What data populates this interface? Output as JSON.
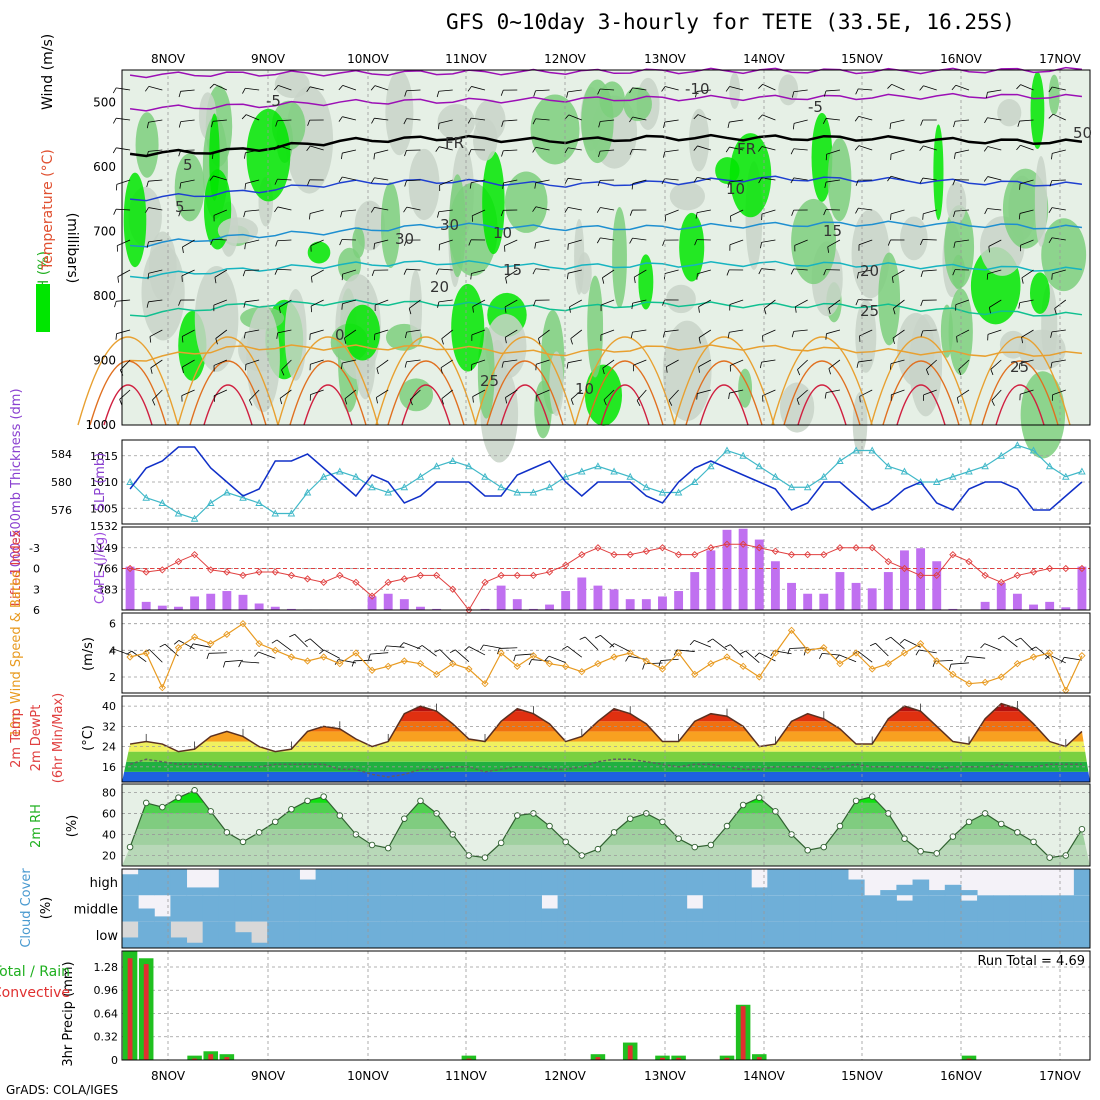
{
  "title": "GFS 0~10day 3-hourly for TETE (33.5E, 16.25S)",
  "footer": "GrADS: COLA/IGES",
  "colors": {
    "rh_dark": "#00e600",
    "rh_mid": "#7dcf7d",
    "rh_light": "#c8d4c8",
    "rh_pale": "#e6f0e6",
    "tlow": "#9b0fb5",
    "tfr": "#000000",
    "t5": "#1e40d0",
    "t10": "#1e8fd0",
    "t15": "#16b4c0",
    "t20": "#10c090",
    "t25": "#e8a030",
    "t30": "#e07020",
    "t35": "#d02040",
    "slp": "#40b8c8",
    "thick": "#1030c8",
    "li": "#e04040",
    "cape": "#c070f0",
    "wind": "#e89a20",
    "barb": "#000000",
    "cloud": "#6fafd8",
    "cloud_gap": "#f4f2f8",
    "cloud_low_gap": "#d8d8d8",
    "precip_total": "#20c020",
    "precip_conv": "#e03030"
  },
  "chart_data": [
    {
      "panel": "meteogram-upper-air",
      "type": "heatmap",
      "x_ticks": [
        "8NOV",
        "9NOV",
        "10NOV",
        "11NOV",
        "12NOV",
        "13NOV",
        "14NOV",
        "15NOV",
        "16NOV",
        "17NOV"
      ],
      "ylabel": "(millibars)",
      "y_ticks": [
        "500",
        "600",
        "700",
        "800",
        "900",
        "1000"
      ],
      "ylim": [
        450,
        1000
      ],
      "label_rh": "RH (%)",
      "label_temp": "Temperature (°C)",
      "label_wind": "Wind (m/s)",
      "contour_labels": [
        "-5",
        "-10",
        "-5",
        "FR",
        "FR",
        "5",
        "5",
        "10",
        "10",
        "15",
        "15",
        "20",
        "20",
        "25",
        "0",
        "25",
        "10",
        "25",
        "30",
        "30",
        "50"
      ],
      "isotherms": [
        {
          "name": "-10",
          "p": [
            458,
            456,
            455,
            454,
            453,
            452,
            451,
            452,
            451,
            450
          ]
        },
        {
          "name": "-5",
          "p": [
            510,
            506,
            500,
            498,
            496,
            494,
            493,
            492,
            490,
            492
          ]
        },
        {
          "name": "FR",
          "p": [
            580,
            575,
            560,
            555,
            560,
            555,
            555,
            556,
            560,
            562
          ]
        },
        {
          "name": "5",
          "p": [
            650,
            640,
            625,
            622,
            628,
            625,
            618,
            620,
            624,
            628
          ]
        },
        {
          "name": "10",
          "p": [
            722,
            708,
            700,
            690,
            695,
            694,
            690,
            688,
            690,
            695
          ]
        },
        {
          "name": "15",
          "p": [
            770,
            760,
            752,
            748,
            755,
            752,
            750,
            752,
            756,
            760
          ]
        },
        {
          "name": "20",
          "p": [
            830,
            815,
            810,
            812,
            820,
            812,
            815,
            815,
            825,
            830
          ]
        },
        {
          "name": "25",
          "p": [
            900,
            880,
            880,
            880,
            890,
            880,
            880,
            885,
            890,
            890
          ]
        }
      ]
    },
    {
      "panel": "slp-thickness",
      "type": "line",
      "label_left": "1000-500mb Thickness (dm)",
      "label_right": "SLP (mb)",
      "y_ticks_left": [
        "584",
        "580",
        "576"
      ],
      "y_ticks_right": [
        "1015",
        "1010",
        "1005"
      ],
      "ylim_left": [
        574,
        586
      ],
      "ylim_right": [
        1002,
        1018
      ],
      "series": [
        {
          "name": "SLP (mb)",
          "values": [
            1010,
            1007,
            1006,
            1004,
            1003,
            1006,
            1008,
            1007,
            1006,
            1004,
            1004,
            1008,
            1011,
            1012,
            1011,
            1009,
            1008,
            1009,
            1011,
            1013,
            1014,
            1013,
            1011,
            1009,
            1008,
            1008,
            1009,
            1011,
            1012,
            1013,
            1012,
            1011,
            1009,
            1008,
            1008,
            1010,
            1013,
            1016,
            1015,
            1013,
            1011,
            1009,
            1009,
            1011,
            1014,
            1016,
            1016,
            1013,
            1012,
            1010,
            1010,
            1011,
            1012,
            1013,
            1015,
            1017,
            1016,
            1013,
            1011,
            1012
          ]
        },
        {
          "name": "1000-500mb Thickness (dm)",
          "values": [
            579,
            582,
            583,
            585,
            585,
            582,
            580,
            578,
            579,
            583,
            583,
            584,
            582,
            580,
            578,
            581,
            580,
            577,
            578,
            580,
            580,
            580,
            578,
            578,
            581,
            582,
            583,
            580,
            578,
            580,
            580,
            580,
            578,
            577,
            580,
            582,
            583,
            582,
            581,
            580,
            579,
            576,
            577,
            580,
            580,
            578,
            576,
            577,
            579,
            580,
            577,
            576,
            579,
            580,
            580,
            579,
            576,
            576,
            578,
            580
          ]
        }
      ]
    },
    {
      "panel": "li-cape",
      "type": "bar",
      "label_left": "Lifted Index",
      "label_right": "CAPE (J/kg)",
      "y_ticks_left": [
        "-3",
        "0",
        "3",
        "6"
      ],
      "y_ticks_right": [
        "1149",
        "766",
        "383"
      ],
      "ylim_right": [
        0,
        1532
      ],
      "ylim_left": [
        6,
        -6
      ],
      "series": [
        {
          "name": "CAPE (J/kg)",
          "values": [
            800,
            150,
            80,
            60,
            250,
            300,
            350,
            280,
            120,
            60,
            20,
            10,
            10,
            0,
            10,
            250,
            300,
            200,
            60,
            20,
            0,
            0,
            20,
            450,
            200,
            20,
            100,
            350,
            600,
            450,
            380,
            200,
            200,
            250,
            350,
            700,
            1100,
            1480,
            1500,
            1300,
            900,
            500,
            300,
            300,
            700,
            500,
            400,
            700,
            1100,
            1140,
            900,
            20,
            0,
            150,
            500,
            300,
            100,
            150,
            50,
            800
          ]
        },
        {
          "name": "Lifted Index",
          "values": [
            0,
            0.5,
            0.2,
            -1,
            -2,
            0.2,
            0.5,
            1,
            0.5,
            0.5,
            1,
            1.5,
            2,
            1,
            2,
            4,
            2,
            1.5,
            1,
            1,
            3,
            6,
            2,
            1,
            1,
            1,
            0.5,
            -0.5,
            -2,
            -3,
            -2,
            -2,
            -2.5,
            -3,
            -2,
            -2,
            -3,
            -3.5,
            -3.5,
            -3,
            -2.5,
            -2,
            -2,
            -2,
            -3,
            -3,
            -3,
            -1,
            0,
            1,
            1,
            -2,
            -1,
            1,
            2,
            1,
            0.5,
            0,
            0,
            0
          ]
        }
      ]
    },
    {
      "panel": "wind-10m",
      "type": "line",
      "label": "10m Wind Speed & Barbs",
      "label_units": "(m/s)",
      "y_ticks": [
        "6",
        "4",
        "2"
      ],
      "ylim": [
        0.8,
        6.8
      ],
      "series": [
        {
          "name": "10m Wind Speed",
          "values": [
            3.5,
            3.8,
            1.2,
            4.2,
            5.0,
            4.5,
            5.2,
            6.0,
            4.5,
            4.0,
            3.5,
            3.2,
            3.5,
            3.0,
            3.8,
            2.5,
            2.8,
            3.2,
            3.0,
            2.2,
            3.0,
            2.6,
            1.5,
            3.8,
            2.8,
            3.6,
            3.0,
            2.8,
            2.4,
            3.0,
            3.5,
            3.8,
            3.2,
            2.6,
            3.8,
            2.2,
            3.0,
            3.5,
            2.8,
            2.0,
            3.8,
            5.5,
            4.0,
            4.2,
            3.0,
            3.8,
            2.6,
            3.0,
            3.8,
            4.5,
            3.2,
            2.2,
            1.5,
            1.6,
            2.0,
            3.0,
            3.5,
            3.8,
            1.0,
            3.6
          ]
        }
      ]
    },
    {
      "panel": "temp-dewpt",
      "type": "area",
      "label": "2m Temp",
      "label_2": "2m DewPt",
      "label_3": "(6hr Min/Max)",
      "label_units": "(°C)",
      "y_ticks": [
        "40",
        "32",
        "24",
        "16"
      ],
      "ylim": [
        10,
        44
      ],
      "series": [
        {
          "name": "2m Temp",
          "values": [
            25,
            26,
            25,
            22,
            23,
            28,
            30,
            28,
            24,
            22,
            23,
            30,
            32,
            31,
            27,
            24,
            26,
            37,
            40,
            38,
            33,
            27,
            26,
            34,
            39,
            37,
            33,
            26,
            28,
            34,
            39,
            37,
            33,
            26,
            26,
            34,
            37,
            36,
            32,
            24,
            25,
            34,
            37,
            35,
            31,
            25,
            25,
            35,
            40,
            38,
            32,
            26,
            25,
            35,
            41,
            39,
            33,
            26,
            24,
            30
          ]
        },
        {
          "name": "2m DewPt",
          "values": [
            17,
            19,
            18,
            17,
            17,
            17,
            16,
            16,
            16,
            17,
            17,
            17,
            17,
            15,
            15,
            13,
            12,
            13,
            15,
            15,
            16,
            16,
            14,
            15,
            16,
            16,
            15,
            15,
            16,
            18,
            19,
            19,
            18,
            17,
            16,
            17,
            17,
            16,
            15,
            15,
            16,
            16,
            16,
            15,
            16,
            17,
            16,
            16,
            16,
            16,
            15,
            16,
            16,
            16,
            17,
            16,
            16,
            17,
            17,
            17
          ]
        }
      ]
    },
    {
      "panel": "rh-2m",
      "type": "area",
      "label": "2m RH",
      "label_units": "(%)",
      "y_ticks": [
        "80",
        "60",
        "40",
        "20"
      ],
      "ylim": [
        10,
        88
      ],
      "series": [
        {
          "name": "2m RH",
          "values": [
            28,
            70,
            66,
            75,
            82,
            62,
            42,
            33,
            42,
            52,
            64,
            72,
            76,
            58,
            40,
            30,
            27,
            55,
            72,
            60,
            40,
            20,
            18,
            32,
            58,
            60,
            48,
            33,
            20,
            26,
            42,
            55,
            60,
            52,
            36,
            28,
            30,
            48,
            68,
            75,
            62,
            40,
            25,
            28,
            48,
            72,
            76,
            60,
            36,
            24,
            22,
            38,
            52,
            60,
            50,
            42,
            33,
            18,
            20,
            45
          ]
        }
      ]
    },
    {
      "panel": "cloud-cover",
      "type": "heatmap",
      "label": "Cloud Cover",
      "label_units": "(%)",
      "y_ticks": [
        "high",
        "middle",
        "low"
      ],
      "series": [
        {
          "name": "high",
          "values": [
            80,
            100,
            100,
            100,
            30,
            30,
            100,
            100,
            100,
            100,
            100,
            60,
            100,
            100,
            100,
            100,
            100,
            100,
            100,
            100,
            100,
            100,
            100,
            100,
            100,
            100,
            100,
            100,
            100,
            100,
            100,
            100,
            100,
            100,
            100,
            100,
            100,
            100,
            100,
            30,
            100,
            100,
            100,
            100,
            100,
            60,
            0,
            20,
            40,
            60,
            20,
            40,
            20,
            0,
            0,
            0,
            0,
            0,
            0,
            100
          ]
        },
        {
          "name": "middle",
          "values": [
            100,
            50,
            20,
            100,
            100,
            100,
            100,
            100,
            100,
            100,
            100,
            100,
            100,
            100,
            100,
            100,
            100,
            100,
            100,
            100,
            100,
            100,
            100,
            100,
            100,
            100,
            50,
            100,
            100,
            100,
            100,
            100,
            100,
            100,
            100,
            50,
            100,
            100,
            100,
            100,
            100,
            100,
            100,
            100,
            100,
            100,
            100,
            100,
            80,
            100,
            100,
            100,
            80,
            100,
            100,
            100,
            100,
            100,
            100,
            100
          ]
        },
        {
          "name": "low",
          "values": [
            40,
            100,
            100,
            40,
            20,
            100,
            100,
            60,
            20,
            100,
            100,
            100,
            100,
            100,
            100,
            100,
            100,
            100,
            100,
            100,
            100,
            100,
            100,
            100,
            100,
            100,
            100,
            100,
            100,
            100,
            100,
            100,
            100,
            100,
            100,
            100,
            100,
            100,
            100,
            100,
            100,
            100,
            100,
            100,
            100,
            100,
            100,
            100,
            100,
            100,
            100,
            100,
            100,
            100,
            100,
            100,
            100,
            100,
            100,
            100
          ]
        }
      ]
    },
    {
      "panel": "precip",
      "type": "bar",
      "label": "3hr Precip (mm)",
      "legend_1": "Total / Rain",
      "legend_2": "Convective",
      "run_total": "Run Total = 4.69",
      "y_ticks": [
        "1.28",
        "0.96",
        "0.64",
        "0.32",
        "0"
      ],
      "ylim": [
        0,
        1.5
      ],
      "series": [
        {
          "name": "Total / Rain",
          "values": [
            1.5,
            1.4,
            0,
            0,
            0.06,
            0.12,
            0.08,
            0,
            0,
            0,
            0,
            0,
            0,
            0,
            0,
            0,
            0,
            0,
            0,
            0,
            0,
            0.06,
            0,
            0,
            0,
            0,
            0,
            0,
            0,
            0.08,
            0,
            0.24,
            0,
            0.06,
            0.06,
            0,
            0,
            0.06,
            0.76,
            0.08,
            0,
            0,
            0,
            0,
            0,
            0,
            0,
            0,
            0,
            0,
            0,
            0,
            0.06,
            0,
            0,
            0,
            0,
            0,
            0,
            0
          ]
        },
        {
          "name": "Convective",
          "values": [
            1.4,
            1.32,
            0,
            0,
            0.02,
            0.08,
            0.04,
            0,
            0,
            0,
            0,
            0,
            0,
            0,
            0,
            0,
            0,
            0,
            0,
            0,
            0,
            0.02,
            0,
            0,
            0,
            0,
            0,
            0,
            0,
            0.04,
            0,
            0.2,
            0,
            0.03,
            0.03,
            0,
            0,
            0.03,
            0.74,
            0.04,
            0,
            0,
            0,
            0,
            0,
            0,
            0,
            0,
            0,
            0,
            0,
            0,
            0.02,
            0,
            0,
            0,
            0,
            0,
            0,
            0
          ]
        }
      ]
    }
  ]
}
